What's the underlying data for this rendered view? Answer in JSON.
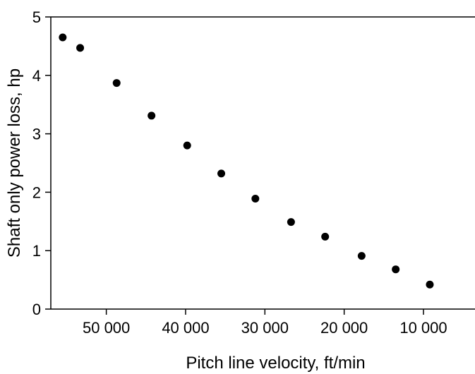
{
  "chart_data": {
    "type": "scatter",
    "title": "",
    "xlabel": "Pitch line velocity, ft/min",
    "ylabel": "Shaft only power loss, hp",
    "x_axis": {
      "range": [
        57000,
        3500
      ],
      "reversed": true,
      "ticks": [
        50000,
        40000,
        30000,
        20000,
        10000
      ],
      "tick_labels": [
        "50 000",
        "40 000",
        "30 000",
        "20 000",
        "10 000"
      ]
    },
    "y_axis": {
      "range": [
        0,
        5
      ],
      "ticks": [
        0,
        1,
        2,
        3,
        4,
        5
      ],
      "tick_labels": [
        "0",
        "1",
        "2",
        "3",
        "4",
        "5"
      ]
    },
    "grid": false,
    "legend": "none",
    "series": [
      {
        "color": "#000000",
        "marker": "filled-circle",
        "points": [
          {
            "x": 55500,
            "y": 4.65
          },
          {
            "x": 53300,
            "y": 4.47
          },
          {
            "x": 48700,
            "y": 3.87
          },
          {
            "x": 44300,
            "y": 3.31
          },
          {
            "x": 39800,
            "y": 2.8
          },
          {
            "x": 35500,
            "y": 2.32
          },
          {
            "x": 31200,
            "y": 1.89
          },
          {
            "x": 26700,
            "y": 1.49
          },
          {
            "x": 22400,
            "y": 1.24
          },
          {
            "x": 17800,
            "y": 0.91
          },
          {
            "x": 13500,
            "y": 0.68
          },
          {
            "x": 9200,
            "y": 0.42
          }
        ]
      }
    ]
  }
}
